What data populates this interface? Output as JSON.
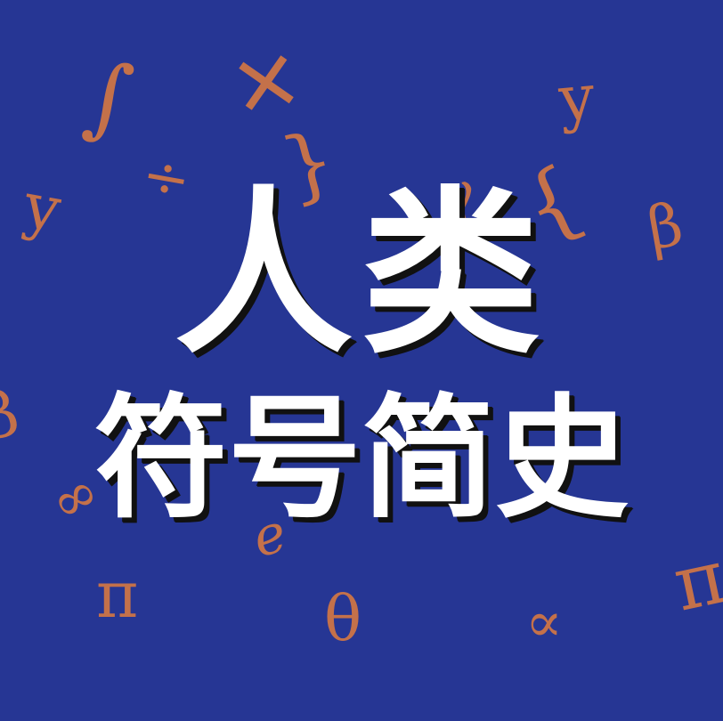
{
  "title": {
    "main": "人类",
    "sub": "符号简史"
  },
  "colors": {
    "background": "#263694",
    "symbol": "#c4714a",
    "title_text": "#ffffff",
    "title_shadow": "#111111"
  },
  "symbols": {
    "integral": "∫",
    "plus": "+",
    "y_top_right": "y",
    "divide": "÷",
    "brace_left_mid": "}",
    "y_left": "y",
    "gamma": "γ",
    "brace_right": "{",
    "beta_right": "β",
    "beta_left": "β",
    "infinity_left": "∞",
    "e": "e",
    "pi_left": "π",
    "theta": "θ",
    "proportional": "∝",
    "pi_right": "π"
  }
}
